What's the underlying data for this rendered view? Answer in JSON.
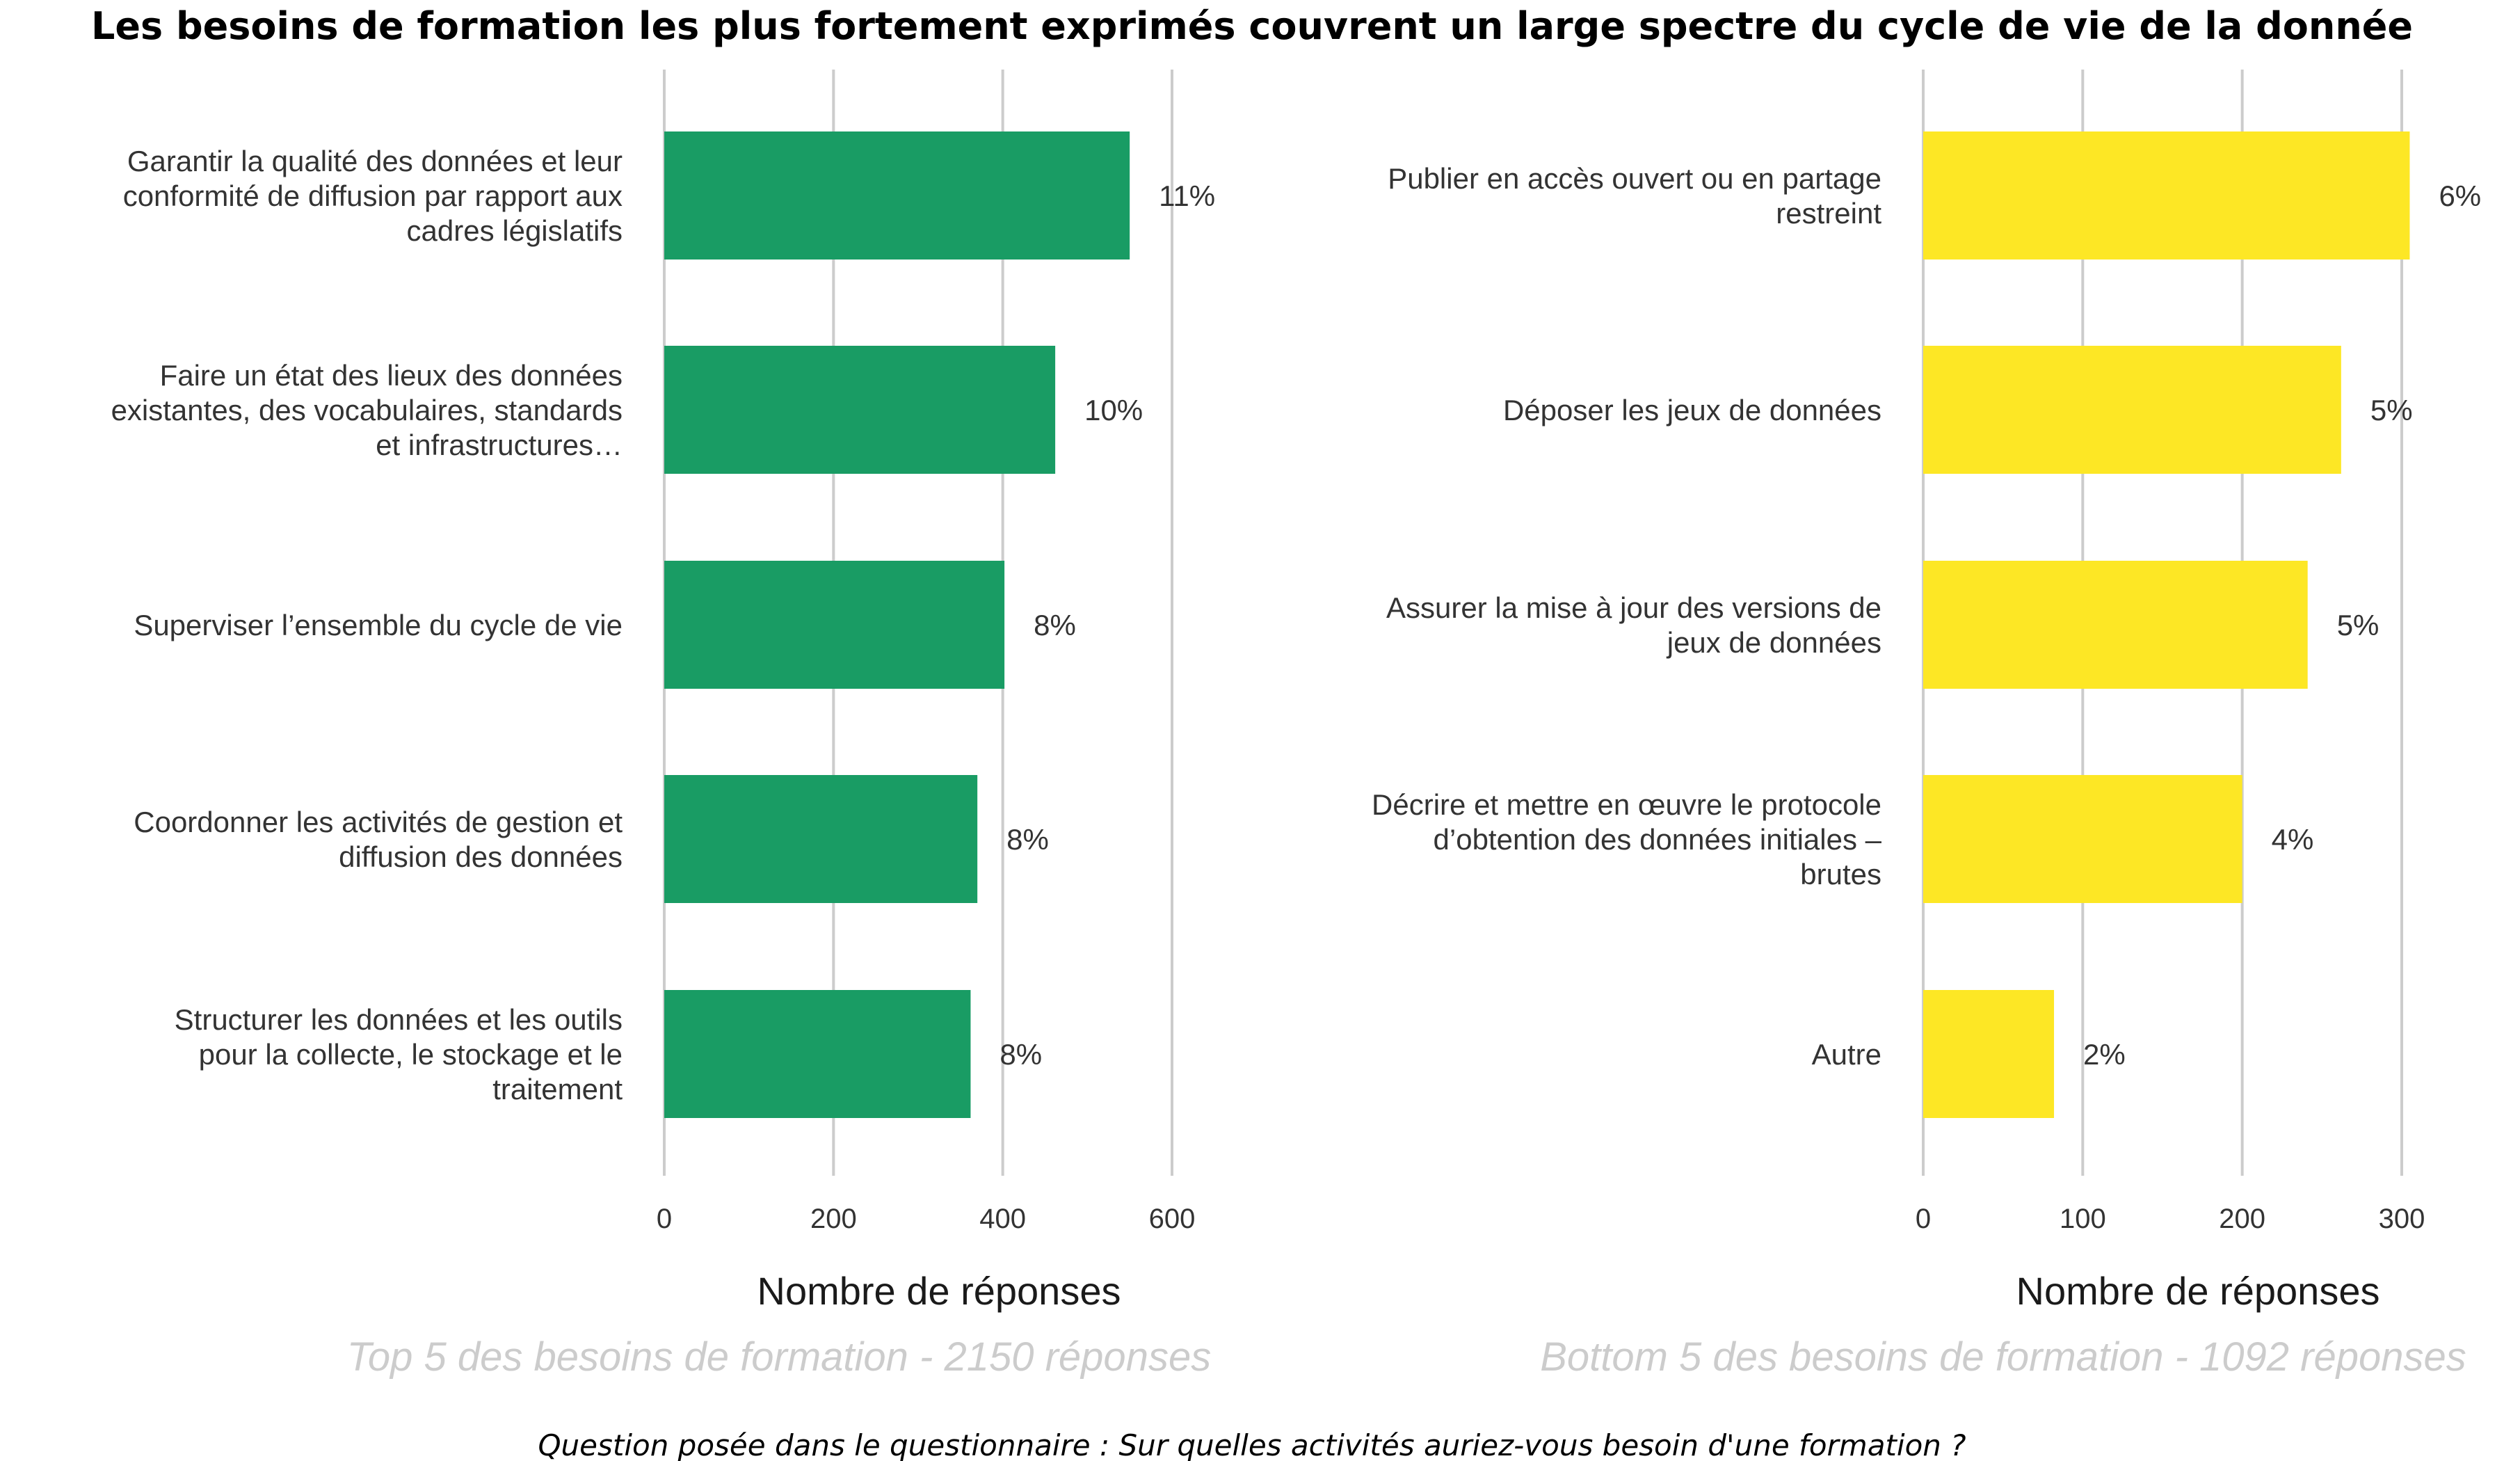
{
  "title": "Les besoins de formation les plus fortement exprimés couvrent un large spectre du cycle de vie de la donnée",
  "footer": "Question posée dans le questionnaire : Sur quelles activités auriez-vous besoin d'une formation ?",
  "chart_data": [
    {
      "type": "bar",
      "orientation": "horizontal",
      "color": "#199C64",
      "xlabel": "Nombre de réponses",
      "subtitle": "Top 5 des besoins de formation - 2150 réponses",
      "xlim": [
        0,
        600
      ],
      "ticks": [
        0,
        200,
        400,
        600
      ],
      "grid": true,
      "categories": [
        [
          "Garantir la qualité des données et leur",
          "conformité de diffusion par rapport aux",
          "cadres législatifs"
        ],
        [
          "Faire un état des lieux des données",
          "existantes, des vocabulaires, standards",
          "et infrastructures…"
        ],
        [
          "Superviser l’ensemble du cycle de vie"
        ],
        [
          "Coordonner les activités de gestion et",
          "diffusion des données"
        ],
        [
          "Structurer les données et les outils",
          "pour la collecte, le stockage et le",
          "traitement"
        ]
      ],
      "values": [
        550,
        462,
        402,
        370,
        362
      ],
      "labels": [
        "11%",
        "10%",
        "8%",
        "8%",
        "8%"
      ]
    },
    {
      "type": "bar",
      "orientation": "horizontal",
      "color": "#FDE725",
      "xlabel": "Nombre de réponses",
      "subtitle": "Bottom 5 des besoins de formation - 1092 réponses",
      "xlim": [
        0,
        300
      ],
      "ticks": [
        0,
        100,
        200,
        300
      ],
      "grid": true,
      "categories": [
        [
          "Publier en accès ouvert ou en partage",
          "restreint"
        ],
        [
          "Déposer les jeux de données"
        ],
        [
          "Assurer la mise à jour des versions de",
          "jeux de données"
        ],
        [
          "Décrire et mettre en œuvre le protocole",
          "d’obtention des données initiales –",
          "brutes"
        ],
        [
          "Autre"
        ]
      ],
      "values": [
        305,
        262,
        241,
        200,
        82
      ],
      "labels": [
        "6%",
        "5%",
        "5%",
        "4%",
        "2%"
      ]
    }
  ]
}
